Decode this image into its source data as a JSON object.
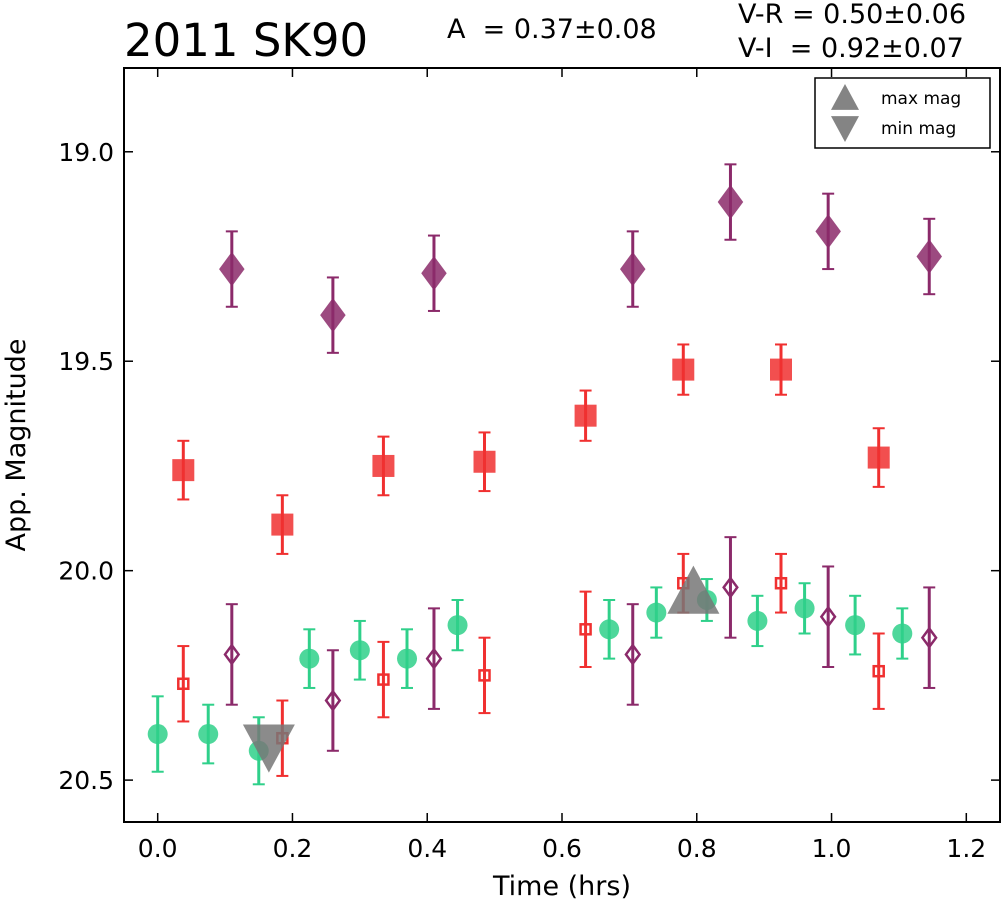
{
  "chart_data": {
    "type": "scatter",
    "title": "2011 SK90",
    "annotations": {
      "amplitude": "A  = 0.37±0.08",
      "v_r": "V-R = 0.50±0.06",
      "v_i": "V-I  = 0.92±0.07"
    },
    "xlabel": "Time (hrs)",
    "ylabel": "App. Magnitude",
    "xlim": [
      -0.05,
      1.25
    ],
    "ylim": [
      20.6,
      18.8
    ],
    "y_inverted": true,
    "grid": false,
    "x_ticks": [
      "0.0",
      "0.2",
      "0.4",
      "0.6",
      "0.8",
      "1.0",
      "1.2"
    ],
    "y_ticks": [
      "19.0",
      "19.5",
      "20.0",
      "20.5"
    ],
    "legend": {
      "placement": "top-right",
      "entries": [
        {
          "label": "max mag",
          "marker": "triangle-up"
        },
        {
          "label": "min mag",
          "marker": "triangle-down"
        }
      ]
    },
    "series": [
      {
        "marker": "diamond",
        "filled": true,
        "color": "#8b2a6a",
        "points": [
          {
            "x": 0.11,
            "y": 19.28,
            "err": 0.09
          },
          {
            "x": 0.26,
            "y": 19.39,
            "err": 0.09
          },
          {
            "x": 0.41,
            "y": 19.29,
            "err": 0.09
          },
          {
            "x": 0.705,
            "y": 19.28,
            "err": 0.09
          },
          {
            "x": 0.85,
            "y": 19.12,
            "err": 0.09
          },
          {
            "x": 0.995,
            "y": 19.19,
            "err": 0.09
          },
          {
            "x": 1.145,
            "y": 19.25,
            "err": 0.09
          }
        ]
      },
      {
        "marker": "square",
        "filled": true,
        "color": "#f03030",
        "points": [
          {
            "x": 0.038,
            "y": 19.76,
            "err": 0.07
          },
          {
            "x": 0.185,
            "y": 19.89,
            "err": 0.07
          },
          {
            "x": 0.335,
            "y": 19.75,
            "err": 0.07
          },
          {
            "x": 0.485,
            "y": 19.74,
            "err": 0.07
          },
          {
            "x": 0.635,
            "y": 19.63,
            "err": 0.06
          },
          {
            "x": 0.78,
            "y": 19.52,
            "err": 0.06
          },
          {
            "x": 0.925,
            "y": 19.52,
            "err": 0.06
          },
          {
            "x": 1.07,
            "y": 19.73,
            "err": 0.07
          }
        ]
      },
      {
        "marker": "circle",
        "filled": true,
        "color": "#2fd08a",
        "points": [
          {
            "x": 0.0,
            "y": 20.39,
            "err": 0.09
          },
          {
            "x": 0.075,
            "y": 20.39,
            "err": 0.07
          },
          {
            "x": 0.15,
            "y": 20.43,
            "err": 0.08
          },
          {
            "x": 0.225,
            "y": 20.21,
            "err": 0.07
          },
          {
            "x": 0.3,
            "y": 20.19,
            "err": 0.07
          },
          {
            "x": 0.37,
            "y": 20.21,
            "err": 0.07
          },
          {
            "x": 0.445,
            "y": 20.13,
            "err": 0.06
          },
          {
            "x": 0.67,
            "y": 20.14,
            "err": 0.07
          },
          {
            "x": 0.74,
            "y": 20.1,
            "err": 0.06
          },
          {
            "x": 0.815,
            "y": 20.07,
            "err": 0.05
          },
          {
            "x": 0.89,
            "y": 20.12,
            "err": 0.06
          },
          {
            "x": 0.96,
            "y": 20.09,
            "err": 0.06
          },
          {
            "x": 1.035,
            "y": 20.13,
            "err": 0.07
          },
          {
            "x": 1.105,
            "y": 20.15,
            "err": 0.06
          }
        ]
      },
      {
        "marker": "square",
        "filled": false,
        "color": "#f03030",
        "points": [
          {
            "x": 0.038,
            "y": 20.27,
            "err": 0.09
          },
          {
            "x": 0.185,
            "y": 20.4,
            "err": 0.09
          },
          {
            "x": 0.335,
            "y": 20.26,
            "err": 0.09
          },
          {
            "x": 0.485,
            "y": 20.25,
            "err": 0.09
          },
          {
            "x": 0.635,
            "y": 20.14,
            "err": 0.09
          },
          {
            "x": 0.78,
            "y": 20.03,
            "err": 0.07
          },
          {
            "x": 0.925,
            "y": 20.03,
            "err": 0.07
          },
          {
            "x": 1.07,
            "y": 20.24,
            "err": 0.09
          }
        ]
      },
      {
        "marker": "diamond",
        "filled": false,
        "color": "#8b2a6a",
        "points": [
          {
            "x": 0.11,
            "y": 20.2,
            "err": 0.12
          },
          {
            "x": 0.26,
            "y": 20.31,
            "err": 0.12
          },
          {
            "x": 0.41,
            "y": 20.21,
            "err": 0.12
          },
          {
            "x": 0.705,
            "y": 20.2,
            "err": 0.12
          },
          {
            "x": 0.85,
            "y": 20.04,
            "err": 0.12
          },
          {
            "x": 0.995,
            "y": 20.11,
            "err": 0.12
          },
          {
            "x": 1.145,
            "y": 20.16,
            "err": 0.12
          }
        ]
      }
    ],
    "extrema": [
      {
        "kind": "max mag",
        "x": 0.795,
        "y": 20.05,
        "marker": "triangle-up",
        "color": "#777777"
      },
      {
        "kind": "min mag",
        "x": 0.165,
        "y": 20.42,
        "marker": "triangle-down",
        "color": "#777777"
      }
    ]
  }
}
